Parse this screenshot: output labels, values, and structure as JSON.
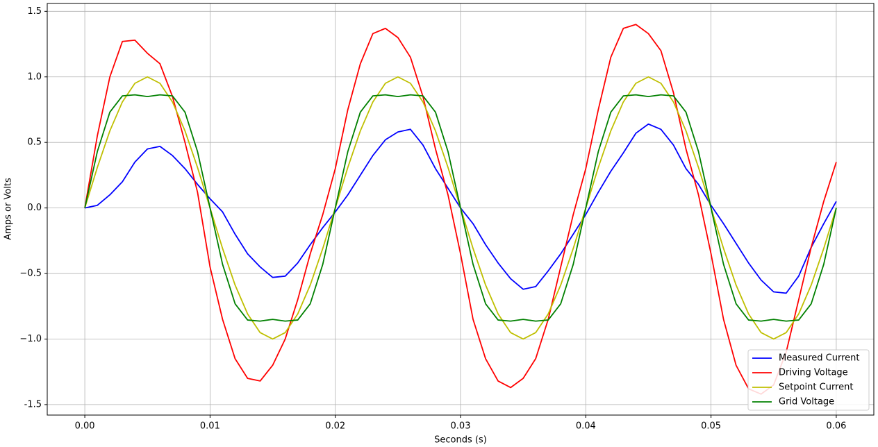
{
  "chart_data": {
    "type": "line",
    "xlabel": "Seconds (s)",
    "ylabel": "Amps or Volts",
    "x": [
      0,
      0.001,
      0.002,
      0.003,
      0.004,
      0.005,
      0.006,
      0.007,
      0.008,
      0.009,
      0.01,
      0.011,
      0.012,
      0.013,
      0.014,
      0.015,
      0.016,
      0.017,
      0.018,
      0.019,
      0.02,
      0.021,
      0.022,
      0.023,
      0.024,
      0.025,
      0.026,
      0.027,
      0.028,
      0.029,
      0.03,
      0.031,
      0.032,
      0.033,
      0.034,
      0.035,
      0.036,
      0.037,
      0.038,
      0.039,
      0.04,
      0.041,
      0.042,
      0.043,
      0.044,
      0.045,
      0.046,
      0.047,
      0.048,
      0.049,
      0.05,
      0.051,
      0.052,
      0.053,
      0.054,
      0.055,
      0.056,
      0.057,
      0.058,
      0.059,
      0.06
    ],
    "series": [
      {
        "name": "Measured Current",
        "color": "#0000ff",
        "values": [
          0,
          0.02,
          0.1,
          0.2,
          0.35,
          0.45,
          0.47,
          0.4,
          0.3,
          0.18,
          0.07,
          -0.03,
          -0.2,
          -0.35,
          -0.45,
          -0.53,
          -0.52,
          -0.42,
          -0.28,
          -0.15,
          -0.03,
          0.1,
          0.25,
          0.4,
          0.52,
          0.58,
          0.6,
          0.48,
          0.3,
          0.15,
          0,
          -0.12,
          -0.28,
          -0.42,
          -0.54,
          -0.62,
          -0.6,
          -0.48,
          -0.35,
          -0.2,
          -0.05,
          0.12,
          0.28,
          0.42,
          0.57,
          0.64,
          0.6,
          0.48,
          0.3,
          0.18,
          0.02,
          -0.12,
          -0.27,
          -0.42,
          -0.55,
          -0.64,
          -0.65,
          -0.52,
          -0.3,
          -0.12,
          0.05
        ]
      },
      {
        "name": "Driving Voltage",
        "color": "#ff0000",
        "values": [
          0,
          0.55,
          1.0,
          1.27,
          1.28,
          1.18,
          1.1,
          0.85,
          0.5,
          0.12,
          -0.45,
          -0.85,
          -1.15,
          -1.3,
          -1.32,
          -1.2,
          -1.0,
          -0.7,
          -0.35,
          -0.05,
          0.3,
          0.75,
          1.1,
          1.33,
          1.37,
          1.3,
          1.15,
          0.85,
          0.45,
          0.1,
          -0.35,
          -0.85,
          -1.15,
          -1.32,
          -1.37,
          -1.3,
          -1.15,
          -0.85,
          -0.45,
          -0.05,
          0.3,
          0.75,
          1.15,
          1.37,
          1.4,
          1.33,
          1.2,
          0.88,
          0.45,
          0.1,
          -0.35,
          -0.85,
          -1.2,
          -1.38,
          -1.42,
          -1.35,
          -1.1,
          -0.7,
          -0.3,
          0.05,
          0.35
        ]
      },
      {
        "name": "Setpoint Current",
        "color": "#bfbf00",
        "values": [
          0,
          0.309,
          0.588,
          0.809,
          0.951,
          1,
          0.951,
          0.809,
          0.588,
          0.309,
          0,
          -0.309,
          -0.588,
          -0.809,
          -0.951,
          -1,
          -0.951,
          -0.809,
          -0.588,
          -0.309,
          0,
          0.309,
          0.588,
          0.809,
          0.951,
          1,
          0.951,
          0.809,
          0.588,
          0.309,
          0,
          -0.309,
          -0.588,
          -0.809,
          -0.951,
          -1,
          -0.951,
          -0.809,
          -0.588,
          -0.309,
          0,
          0.309,
          0.588,
          0.809,
          0.951,
          1,
          0.951,
          0.809,
          0.588,
          0.309,
          0,
          -0.309,
          -0.588,
          -0.809,
          -0.951,
          -1,
          -0.951,
          -0.809,
          -0.588,
          -0.309,
          0
        ]
      },
      {
        "name": "Grid Voltage",
        "color": "#008000",
        "values": [
          0,
          0.43,
          0.731,
          0.855,
          0.863,
          0.85,
          0.863,
          0.855,
          0.731,
          0.43,
          0,
          -0.43,
          -0.731,
          -0.855,
          -0.863,
          -0.85,
          -0.863,
          -0.855,
          -0.731,
          -0.43,
          0,
          0.43,
          0.731,
          0.855,
          0.863,
          0.85,
          0.863,
          0.855,
          0.731,
          0.43,
          0,
          -0.43,
          -0.731,
          -0.855,
          -0.863,
          -0.85,
          -0.863,
          -0.855,
          -0.731,
          -0.43,
          0,
          0.43,
          0.731,
          0.855,
          0.863,
          0.85,
          0.863,
          0.855,
          0.731,
          0.43,
          0,
          -0.43,
          -0.731,
          -0.855,
          -0.863,
          -0.85,
          -0.863,
          -0.855,
          -0.731,
          -0.43,
          0
        ]
      }
    ],
    "xlim": [
      -0.003,
      0.063
    ],
    "ylim": [
      -1.58,
      1.56
    ],
    "xticks": [
      {
        "value": 0,
        "label": "0.00"
      },
      0.01,
      0.02,
      0.03,
      0.04,
      0.05,
      0.06
    ],
    "yticks": [
      -1.5,
      {
        "value": -1,
        "label": "−1.0"
      },
      {
        "value": -0.5,
        "label": "−0.5"
      },
      {
        "value": 0,
        "label": "0.0"
      },
      0.5,
      {
        "value": 1,
        "label": "1.0"
      },
      1.5
    ],
    "grid": true,
    "legend": "lower right"
  }
}
